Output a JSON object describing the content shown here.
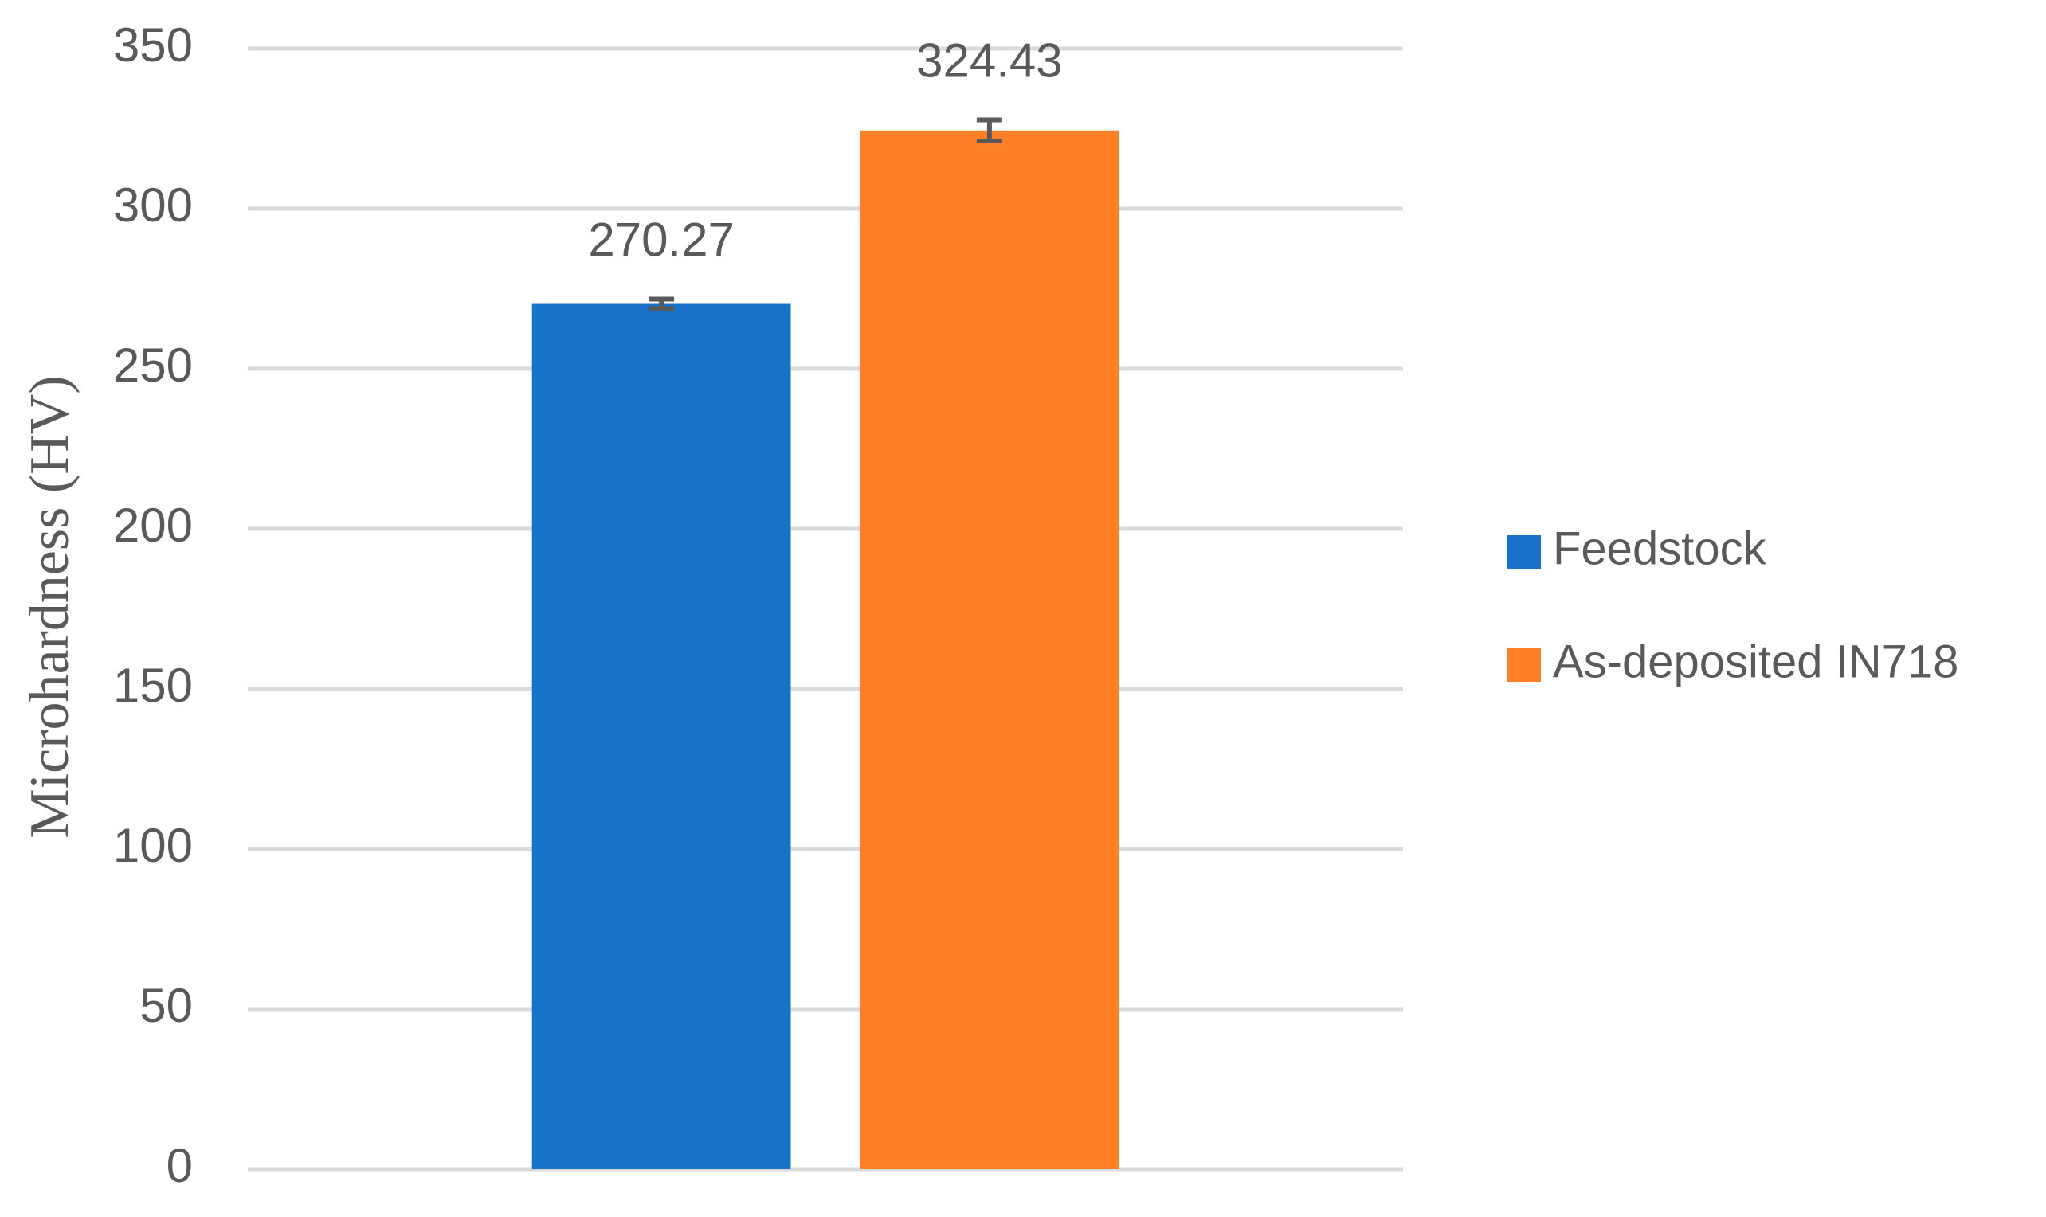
{
  "chart_data": {
    "type": "bar",
    "y_label": "Microhardness (HV)",
    "categories": [
      null
    ],
    "series": [
      {
        "name": "Feedstock",
        "color": "#1872c8",
        "values": [
          270.27
        ],
        "errors": [
          1.5
        ]
      },
      {
        "name": "As-deposited IN718",
        "color": "#fe7f26",
        "values": [
          324.43
        ],
        "errors": [
          3.3
        ]
      }
    ],
    "ylim": [
      0,
      350
    ],
    "yticks": [
      0,
      50,
      100,
      150,
      200,
      250,
      300,
      350
    ],
    "grid": true,
    "legend": "right"
  }
}
